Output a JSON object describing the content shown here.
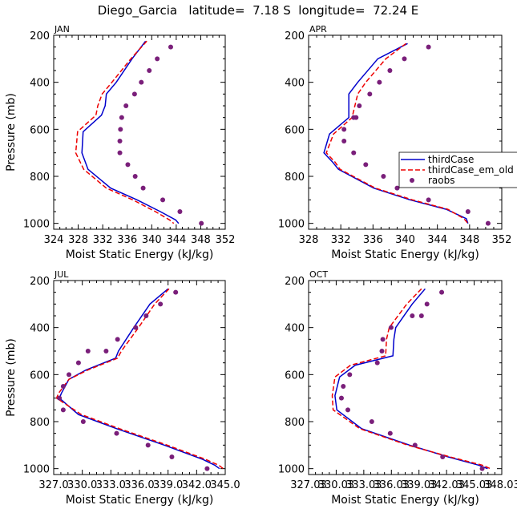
{
  "figure": {
    "title": "Diego_Garcia   latitude=  7.18 S  longitude=  72.24 E"
  },
  "chart_data": [
    {
      "type": "line",
      "panel_label": "JAN",
      "xlabel": "Moist Static Energy (kJ/kg)",
      "ylabel": "Pressure (mb)",
      "xlim": [
        324,
        352
      ],
      "ylim": [
        200,
        1025
      ],
      "x_ticks": [
        "324",
        "328",
        "332",
        "336",
        "340",
        "344",
        "348",
        "352"
      ],
      "y_ticks": [
        "200",
        "400",
        "600",
        "800",
        "1000"
      ],
      "series": [
        {
          "name": "thirdCase",
          "style": "solid",
          "color": "#0000cc",
          "x": [
            339.0,
            336.8,
            334.2,
            332.6,
            332.4,
            331.8,
            328.8,
            328.6,
            329.6,
            333.3,
            337.6,
            341.4,
            343.9,
            344.4
          ],
          "y": [
            225,
            300,
            400,
            450,
            500,
            540,
            610,
            700,
            770,
            850,
            900,
            950,
            985,
            1000
          ]
        },
        {
          "name": "thirdCase_em_old",
          "style": "dashed",
          "color": "#ee0000",
          "x": [
            339.2,
            336.6,
            333.5,
            331.9,
            331.2,
            330.9,
            327.9,
            327.6,
            328.9,
            332.6,
            336.9,
            340.6,
            342.9,
            343.6
          ],
          "y": [
            225,
            300,
            400,
            450,
            500,
            540,
            610,
            700,
            770,
            850,
            900,
            950,
            985,
            1000
          ]
        },
        {
          "name": "raobs",
          "style": "markers",
          "color": "#7a1f7a",
          "x": [
            343.1,
            340.9,
            339.6,
            338.3,
            337.2,
            335.8,
            335.1,
            334.9,
            334.8,
            334.8,
            336.1,
            337.3,
            338.6,
            341.8,
            344.6,
            348.1
          ],
          "y": [
            250,
            300,
            350,
            400,
            450,
            500,
            550,
            600,
            650,
            700,
            750,
            800,
            850,
            900,
            950,
            1000
          ]
        }
      ]
    },
    {
      "type": "line",
      "panel_label": "APR",
      "xlabel": "Moist Static Energy (kJ/kg)",
      "ylabel": "",
      "xlim": [
        328,
        352
      ],
      "ylim": [
        200,
        1025
      ],
      "x_ticks": [
        "328",
        "332",
        "336",
        "340",
        "344",
        "348",
        "352"
      ],
      "y_ticks": [
        "200",
        "400",
        "600",
        "800",
        "1000"
      ],
      "legend": {
        "placement": "right-middle",
        "entries": [
          "thirdCase",
          "thirdCase_em_old",
          "raobs"
        ]
      },
      "series": [
        {
          "name": "thirdCase",
          "style": "solid",
          "color": "#0000cc",
          "x": [
            340.3,
            336.6,
            334.1,
            333.0,
            333.0,
            330.6,
            329.9,
            331.0,
            331.7,
            336.1,
            340.6,
            345.1,
            347.6,
            347.8
          ],
          "y": [
            235,
            300,
            400,
            450,
            550,
            620,
            700,
            740,
            770,
            850,
            900,
            940,
            980,
            1000
          ]
        },
        {
          "name": "thirdCase_em_old",
          "style": "dashed",
          "color": "#ee0000",
          "x": [
            340.1,
            337.6,
            335.1,
            334.1,
            333.4,
            331.1,
            330.2,
            331.3,
            331.9,
            336.3,
            340.9,
            345.3,
            347.3,
            347.8
          ],
          "y": [
            235,
            300,
            400,
            450,
            550,
            620,
            700,
            740,
            770,
            850,
            900,
            940,
            980,
            1000
          ]
        },
        {
          "name": "raobs",
          "style": "markers",
          "color": "#7a1f7a",
          "x": [
            342.9,
            339.9,
            338.1,
            336.8,
            335.6,
            334.3,
            333.9,
            333.6,
            332.4,
            332.4,
            333.6,
            335.1,
            337.3,
            339.0,
            342.9,
            347.8,
            350.3
          ],
          "y": [
            250,
            300,
            350,
            400,
            450,
            500,
            550,
            550,
            600,
            650,
            700,
            750,
            800,
            850,
            900,
            950,
            1000
          ]
        }
      ]
    },
    {
      "type": "line",
      "panel_label": "JUL",
      "xlabel": "Moist Static Energy (kJ/kg)",
      "ylabel": "Pressure (mb)",
      "xlim": [
        327.0,
        345.0
      ],
      "ylim": [
        200,
        1025
      ],
      "x_ticks": [
        "327.0",
        "330.0",
        "333.0",
        "336.0",
        "339.0",
        "342.0",
        "345.0"
      ],
      "y_ticks": [
        "200",
        "400",
        "600",
        "800",
        "1000"
      ],
      "series": [
        {
          "name": "thirdCase",
          "style": "solid",
          "color": "#0000cc",
          "x": [
            339.0,
            337.1,
            335.4,
            333.8,
            333.5,
            330.4,
            328.6,
            327.8,
            327.6,
            329.6,
            333.6,
            338.6,
            342.6,
            343.9,
            344.4
          ],
          "y": [
            235,
            300,
            400,
            500,
            530,
            580,
            620,
            680,
            700,
            770,
            830,
            900,
            960,
            985,
            1000
          ]
        },
        {
          "name": "thirdCase_em_old",
          "style": "dashed",
          "color": "#ee0000",
          "x": [
            339.1,
            337.6,
            335.9,
            334.1,
            333.7,
            330.6,
            328.6,
            327.5,
            327.3,
            329.9,
            333.9,
            338.9,
            342.9,
            344.3,
            344.8
          ],
          "y": [
            235,
            300,
            400,
            500,
            530,
            580,
            620,
            680,
            700,
            770,
            830,
            900,
            960,
            985,
            1000
          ]
        },
        {
          "name": "raobs",
          "style": "markers",
          "color": "#7a1f7a",
          "x": [
            339.8,
            338.2,
            336.7,
            335.6,
            333.7,
            332.5,
            330.6,
            329.6,
            328.6,
            328.0,
            327.6,
            328.0,
            330.1,
            333.6,
            336.9,
            339.4,
            343.1
          ],
          "y": [
            250,
            300,
            350,
            400,
            450,
            500,
            500,
            550,
            600,
            650,
            700,
            750,
            800,
            850,
            900,
            950,
            1000
          ]
        }
      ]
    },
    {
      "type": "line",
      "panel_label": "OCT",
      "xlabel": "Moist Static Energy (kJ/kg)",
      "ylabel": "",
      "xlim": [
        327.03,
        348.03
      ],
      "ylim": [
        200,
        1025
      ],
      "x_ticks": [
        "327.03",
        "330.03",
        "333.03",
        "336.03",
        "339.03",
        "342.03",
        "345.03",
        "348.03"
      ],
      "y_ticks": [
        "200",
        "400",
        "600",
        "800",
        "1000"
      ],
      "series": [
        {
          "name": "thirdCase",
          "style": "solid",
          "color": "#0000cc",
          "x": [
            339.7,
            338.3,
            336.5,
            336.3,
            336.2,
            332.1,
            330.4,
            329.9,
            330.1,
            332.8,
            338.0,
            342.2,
            345.5,
            346.5
          ],
          "y": [
            235,
            300,
            400,
            450,
            520,
            560,
            610,
            690,
            750,
            830,
            900,
            950,
            985,
            1000
          ]
        },
        {
          "name": "thirdCase_em_old",
          "style": "dashed",
          "color": "#ee0000",
          "x": [
            339.3,
            337.7,
            335.8,
            335.5,
            335.4,
            331.6,
            329.9,
            329.6,
            329.7,
            332.6,
            337.8,
            342.4,
            345.9,
            346.8
          ],
          "y": [
            235,
            300,
            400,
            450,
            520,
            560,
            610,
            690,
            750,
            830,
            900,
            950,
            985,
            1000
          ]
        },
        {
          "name": "raobs",
          "style": "markers",
          "color": "#7a1f7a",
          "x": [
            341.5,
            339.9,
            339.3,
            338.3,
            336.0,
            335.1,
            335.0,
            334.5,
            331.5,
            330.8,
            330.6,
            331.3,
            333.9,
            335.9,
            338.6,
            341.6,
            345.9
          ],
          "y": [
            250,
            300,
            350,
            350,
            400,
            450,
            500,
            550,
            600,
            650,
            700,
            750,
            800,
            850,
            900,
            950,
            1000
          ]
        }
      ]
    }
  ]
}
